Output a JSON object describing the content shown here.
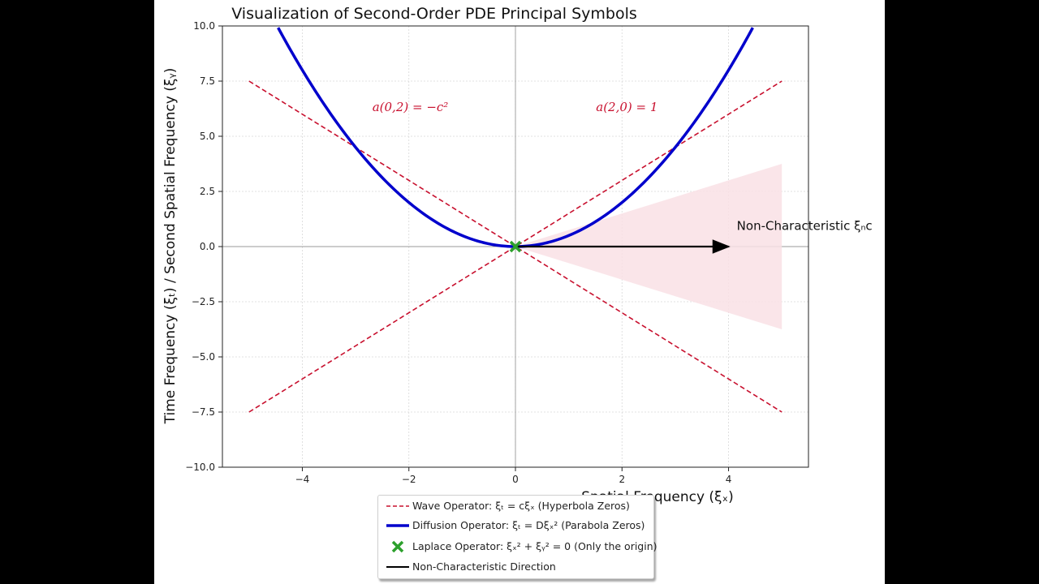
{
  "chart_data": {
    "type": "line",
    "title": "Visualization of Second-Order PDE Principal Symbols",
    "xlabel": "Spatial Frequency (ξₓ)",
    "ylabel": "Time Frequency (ξₜ) / Second Spatial Frequency (ξᵧ)",
    "xlim": [
      -5.5,
      5.5
    ],
    "ylim": [
      -10,
      10
    ],
    "xticks": [
      -4,
      -2,
      0,
      2,
      4
    ],
    "yticks": [
      10.0,
      7.5,
      5.0,
      2.5,
      0.0,
      -2.5,
      -5.0,
      -7.5,
      -10.0
    ],
    "grid": true,
    "series": [
      {
        "name": "Wave Operator: ξₜ = cξₓ (Hyperbola Zeros)",
        "style": "dashed",
        "color": "#c8102e",
        "lines": [
          {
            "x": [
              -5,
              5
            ],
            "y": [
              -7.5,
              7.5
            ]
          },
          {
            "x": [
              -5,
              5
            ],
            "y": [
              7.5,
              -7.5
            ]
          }
        ]
      },
      {
        "name": "Diffusion Operator: ξₜ = Dξₓ² (Parabola Zeros)",
        "style": "solid",
        "color": "#0000cc",
        "coefficient": 0.5,
        "x_range": [
          -5,
          5
        ]
      },
      {
        "name": "Laplace Operator: ξₓ² + ξᵧ² = 0 (Only the origin)",
        "style": "marker-x",
        "color": "#2ca02c",
        "points": [
          {
            "x": 0,
            "y": 0
          }
        ]
      },
      {
        "name": "Non-Characteristic Direction",
        "style": "arrow",
        "color": "#000000",
        "from": {
          "x": 0,
          "y": 0
        },
        "to": {
          "x": 4,
          "y": 0
        }
      }
    ],
    "shaded_region": {
      "color": "#f9e1e5",
      "x_range": [
        0,
        5
      ],
      "upper": "0.75*x",
      "lower": "-0.75*x"
    },
    "annotations": [
      {
        "text": "a(0,2) = −c²",
        "x": -2.0,
        "y": 6.0,
        "color": "#c8102e"
      },
      {
        "text": "a(2,0) = 1",
        "x": 2.0,
        "y": 6.0,
        "color": "#c8102e"
      },
      {
        "text": "Non-Characteristic ξₙᴄ",
        "x": 4.2,
        "y": 0.35,
        "color": "#111111"
      }
    ],
    "legend_position": "bottom-center"
  }
}
